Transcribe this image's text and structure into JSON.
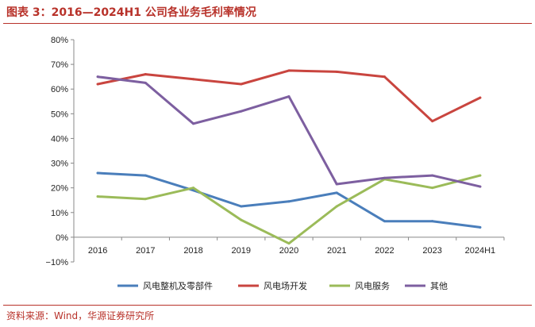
{
  "header": {
    "title": "图表 3：2016—2024H1 公司各业务毛利率情况"
  },
  "footer": {
    "source": "资料来源：Wind，华源证券研究所"
  },
  "chart_data": {
    "type": "line",
    "title": "",
    "xlabel": "",
    "ylabel": "",
    "categories": [
      "2016",
      "2017",
      "2018",
      "2019",
      "2020",
      "2021",
      "2022",
      "2023",
      "2024H1"
    ],
    "ylim": [
      -10,
      80
    ],
    "yticks": [
      80,
      70,
      60,
      50,
      40,
      30,
      20,
      10,
      0,
      -10
    ],
    "ytick_labels": [
      "80%",
      "70%",
      "60%",
      "50%",
      "40%",
      "30%",
      "20%",
      "10%",
      "0%",
      "−10%"
    ],
    "grid": false,
    "legend_position": "bottom",
    "series": [
      {
        "name": "风电整机及零部件",
        "color": "#4a7ebb",
        "values": [
          26,
          25,
          19,
          12.5,
          14.5,
          18,
          6.5,
          6.5,
          4
        ]
      },
      {
        "name": "风电场开发",
        "color": "#c9453f",
        "values": [
          62,
          66,
          64,
          62,
          67.5,
          67,
          65,
          47,
          56.5
        ]
      },
      {
        "name": "风电服务",
        "color": "#9bbb59",
        "values": [
          16.5,
          15.5,
          20,
          7,
          -2.5,
          12.5,
          23.5,
          20,
          25
        ]
      },
      {
        "name": "其他",
        "color": "#7d5fa0",
        "values": [
          65,
          62.5,
          46,
          51,
          57,
          21.5,
          24,
          25,
          20.5
        ]
      }
    ]
  }
}
